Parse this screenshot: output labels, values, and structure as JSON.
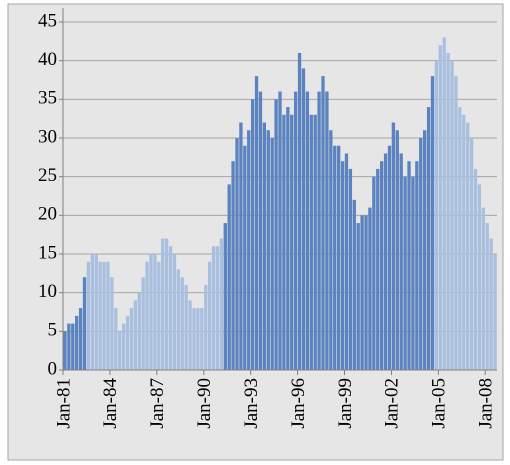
{
  "chart_data": {
    "type": "bar",
    "categories": [
      "Jan-81",
      null,
      null,
      null,
      null,
      null,
      null,
      null,
      null,
      null,
      null,
      null,
      "Jan-84",
      null,
      null,
      null,
      null,
      null,
      null,
      null,
      null,
      null,
      null,
      null,
      "Jan-87",
      null,
      null,
      null,
      null,
      null,
      null,
      null,
      null,
      null,
      null,
      null,
      "Jan-90",
      null,
      null,
      null,
      null,
      null,
      null,
      null,
      null,
      null,
      null,
      null,
      "Jan-93",
      null,
      null,
      null,
      null,
      null,
      null,
      null,
      null,
      null,
      null,
      null,
      "Jan-96",
      null,
      null,
      null,
      null,
      null,
      null,
      null,
      null,
      null,
      null,
      null,
      "Jan-99",
      null,
      null,
      null,
      null,
      null,
      null,
      null,
      null,
      null,
      null,
      null,
      "Jan-02",
      null,
      null,
      null,
      null,
      null,
      null,
      null,
      null,
      null,
      null,
      null,
      "Jan-05",
      null,
      null,
      null,
      null,
      null,
      null,
      null,
      null,
      null,
      null,
      null,
      "Jan-08",
      null,
      null
    ],
    "values": [
      5,
      6,
      6,
      7,
      8,
      12,
      14,
      15,
      15,
      14,
      14,
      14,
      12,
      8,
      5,
      6,
      7,
      8,
      9,
      10,
      12,
      14,
      15,
      15,
      14,
      17,
      17,
      16,
      15,
      13,
      12,
      11,
      9,
      8,
      8,
      8,
      11,
      14,
      16,
      16,
      17,
      19,
      24,
      27,
      30,
      32,
      29,
      31,
      35,
      38,
      36,
      32,
      31,
      30,
      35,
      36,
      33,
      34,
      33,
      36,
      41,
      39,
      36,
      33,
      33,
      36,
      38,
      36,
      31,
      29,
      29,
      27,
      28,
      26,
      22,
      19,
      20,
      20,
      21,
      25,
      26,
      27,
      28,
      29,
      32,
      31,
      28,
      25,
      27,
      25,
      27,
      30,
      31,
      34,
      38,
      40,
      42,
      43,
      41,
      40,
      38,
      34,
      33,
      32,
      30,
      26,
      24,
      21,
      19,
      17,
      15
    ],
    "colors": [
      "#5b83c0",
      "#5b83c0",
      "#5b83c0",
      "#5b83c0",
      "#5b83c0",
      "#5b83c0",
      "#a9bfdf",
      "#a9bfdf",
      "#a9bfdf",
      "#a9bfdf",
      "#a9bfdf",
      "#a9bfdf",
      "#a9bfdf",
      "#a9bfdf",
      "#a9bfdf",
      "#a9bfdf",
      "#a9bfdf",
      "#a9bfdf",
      "#a9bfdf",
      "#a9bfdf",
      "#a9bfdf",
      "#a9bfdf",
      "#a9bfdf",
      "#a9bfdf",
      "#a9bfdf",
      "#a9bfdf",
      "#a9bfdf",
      "#a9bfdf",
      "#a9bfdf",
      "#a9bfdf",
      "#a9bfdf",
      "#a9bfdf",
      "#a9bfdf",
      "#a9bfdf",
      "#a9bfdf",
      "#a9bfdf",
      "#a9bfdf",
      "#a9bfdf",
      "#a9bfdf",
      "#a9bfdf",
      "#a9bfdf",
      "#5b83c0",
      "#5b83c0",
      "#5b83c0",
      "#5b83c0",
      "#5b83c0",
      "#5b83c0",
      "#5b83c0",
      "#5b83c0",
      "#5b83c0",
      "#5b83c0",
      "#5b83c0",
      "#5b83c0",
      "#5b83c0",
      "#5b83c0",
      "#5b83c0",
      "#5b83c0",
      "#5b83c0",
      "#5b83c0",
      "#5b83c0",
      "#5b83c0",
      "#5b83c0",
      "#5b83c0",
      "#5b83c0",
      "#5b83c0",
      "#5b83c0",
      "#5b83c0",
      "#5b83c0",
      "#5b83c0",
      "#5b83c0",
      "#5b83c0",
      "#5b83c0",
      "#5b83c0",
      "#5b83c0",
      "#5b83c0",
      "#5b83c0",
      "#5b83c0",
      "#5b83c0",
      "#5b83c0",
      "#5b83c0",
      "#5b83c0",
      "#5b83c0",
      "#5b83c0",
      "#5b83c0",
      "#5b83c0",
      "#5b83c0",
      "#5b83c0",
      "#5b83c0",
      "#5b83c0",
      "#5b83c0",
      "#5b83c0",
      "#5b83c0",
      "#5b83c0",
      "#5b83c0",
      "#5b83c0",
      "#a9bfdf",
      "#a9bfdf",
      "#a9bfdf",
      "#a9bfdf",
      "#a9bfdf",
      "#a9bfdf",
      "#a9bfdf",
      "#a9bfdf",
      "#a9bfdf",
      "#a9bfdf",
      "#a9bfdf",
      "#a9bfdf",
      "#a9bfdf",
      "#a9bfdf",
      "#a9bfdf",
      "#a9bfdf"
    ],
    "ylim": [
      0,
      45
    ],
    "yticks": [
      0,
      5,
      10,
      15,
      20,
      25,
      30,
      35,
      40,
      45
    ],
    "grid": true
  }
}
